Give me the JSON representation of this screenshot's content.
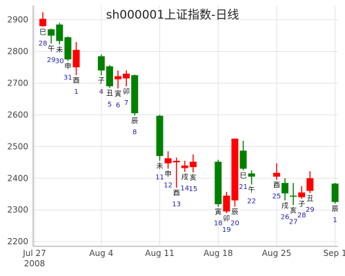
{
  "chart_data": {
    "type": "candlestick",
    "title": "sh000001上证指数-日线",
    "xlabel": "",
    "ylabel": "",
    "ylim": [
      2185,
      2945
    ],
    "x_ticks": [
      {
        "label": "Jul 27",
        "sub": "2008",
        "day": 0
      },
      {
        "label": "Aug 4",
        "sub": "",
        "day": 8
      },
      {
        "label": "Aug 11",
        "sub": "",
        "day": 15
      },
      {
        "label": "Aug 18",
        "sub": "",
        "day": 22
      },
      {
        "label": "Aug 25",
        "sub": "",
        "day": 29
      },
      {
        "label": "Sep 1",
        "sub": "",
        "day": 36
      }
    ],
    "y_ticks": [
      2200,
      2300,
      2400,
      2500,
      2600,
      2700,
      2800,
      2900
    ],
    "up_color": "#ff0000",
    "down_color": "#008000",
    "candles": [
      {
        "day": 1,
        "open": 2880,
        "close": 2903,
        "high": 2924,
        "low": 2878,
        "branch": "巳",
        "daynum": "28"
      },
      {
        "day": 2,
        "open": 2870,
        "close": 2850,
        "high": 2872,
        "low": 2825,
        "branch": "午",
        "daynum": "29"
      },
      {
        "day": 3,
        "open": 2885,
        "close": 2833,
        "high": 2890,
        "low": 2822,
        "branch": "未",
        "daynum": "30"
      },
      {
        "day": 4,
        "open": 2845,
        "close": 2775,
        "high": 2847,
        "low": 2770,
        "branch": "申",
        "daynum": "31"
      },
      {
        "day": 5,
        "open": 2750,
        "close": 2805,
        "high": 2830,
        "low": 2725,
        "branch": "酉",
        "daynum": "1"
      },
      {
        "day": 8,
        "open": 2785,
        "close": 2740,
        "high": 2790,
        "low": 2725,
        "branch": "子",
        "daynum": "4"
      },
      {
        "day": 9,
        "open": 2753,
        "close": 2690,
        "high": 2757,
        "low": 2685,
        "branch": "丑",
        "daynum": "5"
      },
      {
        "day": 10,
        "open": 2712,
        "close": 2722,
        "high": 2740,
        "low": 2683,
        "branch": "寅",
        "daynum": "6"
      },
      {
        "day": 11,
        "open": 2715,
        "close": 2730,
        "high": 2740,
        "low": 2690,
        "branch": "卯",
        "daynum": "7"
      },
      {
        "day": 12,
        "open": 2725,
        "close": 2605,
        "high": 2727,
        "low": 2598,
        "branch": "辰",
        "daynum": "8"
      },
      {
        "day": 15,
        "open": 2597,
        "close": 2470,
        "high": 2600,
        "low": 2455,
        "branch": "未",
        "daynum": "11"
      },
      {
        "day": 16,
        "open": 2447,
        "close": 2463,
        "high": 2485,
        "low": 2430,
        "branch": "申",
        "daynum": "12"
      },
      {
        "day": 17,
        "open": 2450,
        "close": 2455,
        "high": 2465,
        "low": 2370,
        "branch": "酉",
        "daynum": "13"
      },
      {
        "day": 18,
        "open": 2432,
        "close": 2440,
        "high": 2455,
        "low": 2420,
        "branch": "戌",
        "daynum": "14"
      },
      {
        "day": 19,
        "open": 2435,
        "close": 2452,
        "high": 2475,
        "low": 2418,
        "branch": "亥",
        "daynum": "15"
      },
      {
        "day": 22,
        "open": 2452,
        "close": 2318,
        "high": 2458,
        "low": 2310,
        "branch": "寅",
        "daynum": "18"
      },
      {
        "day": 23,
        "open": 2295,
        "close": 2345,
        "high": 2357,
        "low": 2290,
        "branch": "卯",
        "daynum": "19"
      },
      {
        "day": 24,
        "open": 2330,
        "close": 2525,
        "high": 2525,
        "low": 2310,
        "branch": "辰",
        "daynum": "20"
      },
      {
        "day": 25,
        "open": 2487,
        "close": 2430,
        "high": 2518,
        "low": 2425,
        "branch": "巳",
        "daynum": "21"
      },
      {
        "day": 26,
        "open": 2415,
        "close": 2405,
        "high": 2425,
        "low": 2380,
        "branch": "午",
        "daynum": "22"
      },
      {
        "day": 29,
        "open": 2405,
        "close": 2417,
        "high": 2447,
        "low": 2395,
        "branch": "酉",
        "daynum": "25"
      },
      {
        "day": 30,
        "open": 2385,
        "close": 2352,
        "high": 2400,
        "low": 2330,
        "branch": "戌",
        "daynum": "26"
      },
      {
        "day": 31,
        "open": 2345,
        "close": 2342,
        "high": 2385,
        "low": 2315,
        "branch": "亥",
        "daynum": "27"
      },
      {
        "day": 32,
        "open": 2340,
        "close": 2355,
        "high": 2375,
        "low": 2335,
        "branch": "子",
        "daynum": "28"
      },
      {
        "day": 33,
        "open": 2360,
        "close": 2400,
        "high": 2422,
        "low": 2353,
        "branch": "丑",
        "daynum": "29"
      },
      {
        "day": 36,
        "open": 2383,
        "close": 2325,
        "high": 2385,
        "low": 2320,
        "branch": "辰",
        "daynum": "1"
      }
    ]
  }
}
